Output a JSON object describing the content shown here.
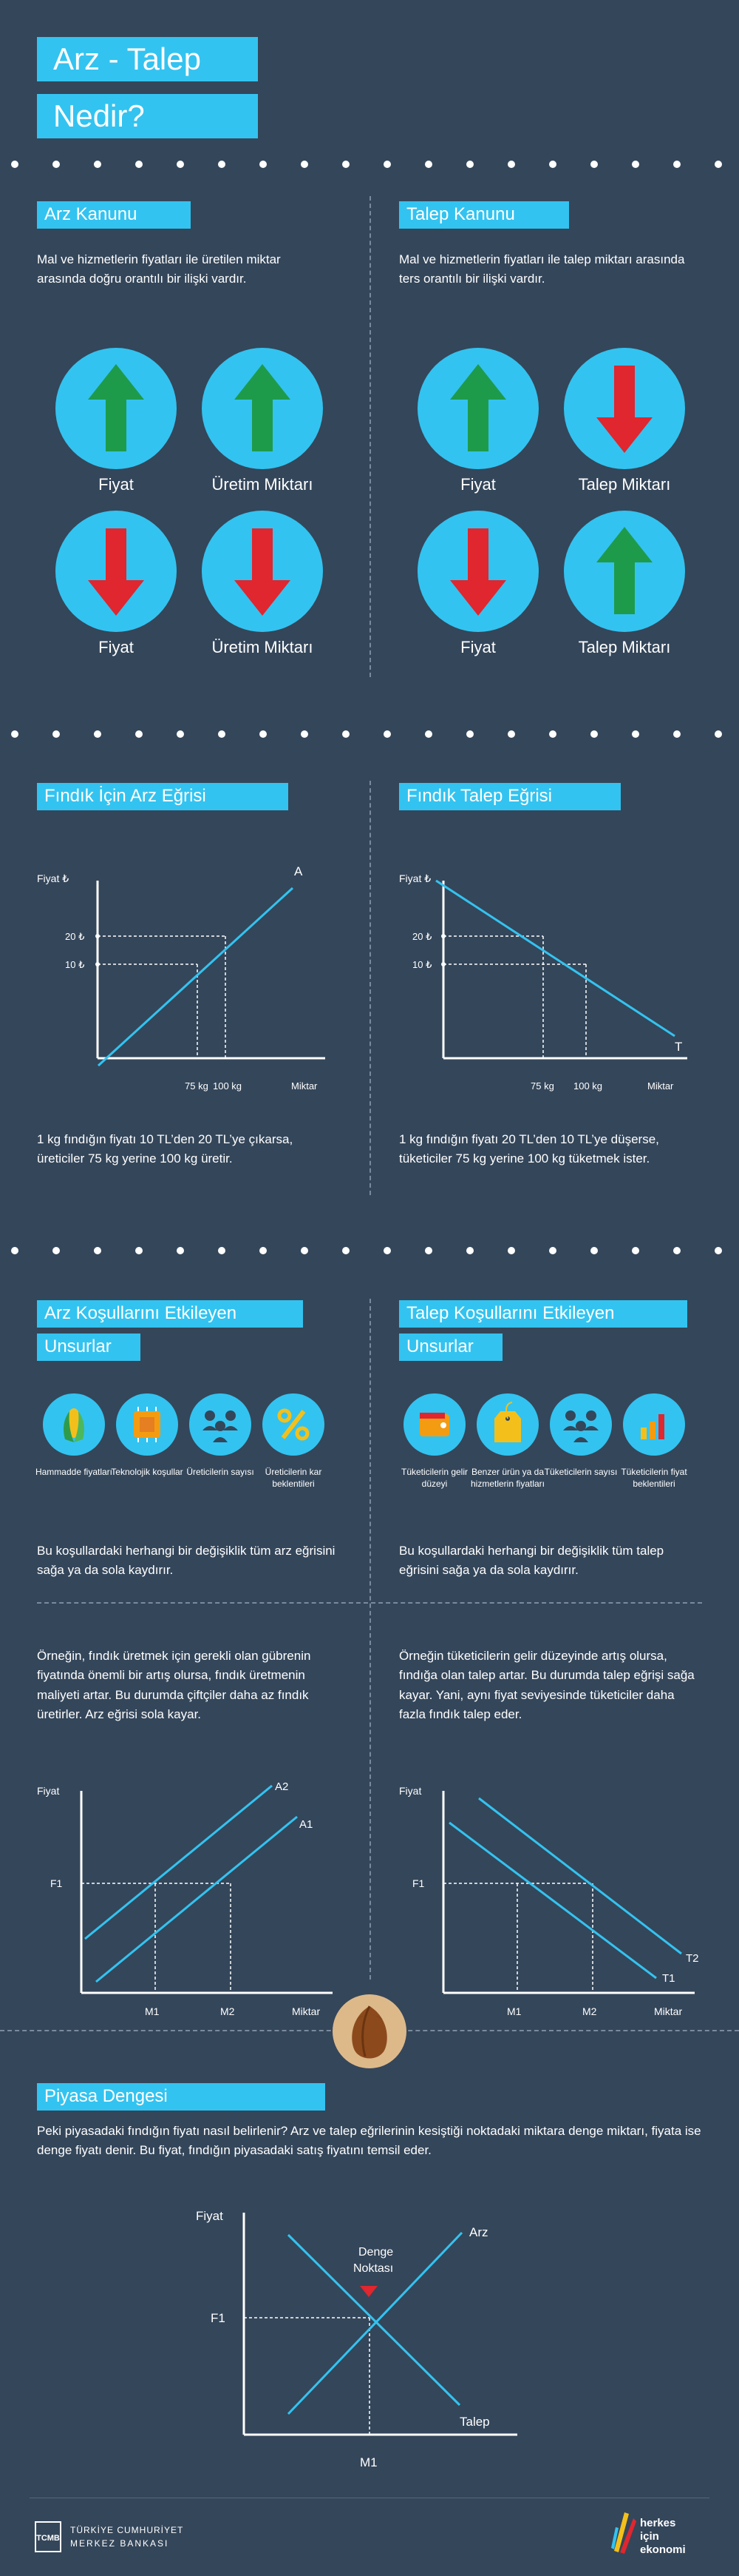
{
  "header": {
    "title_line1": "Arz - Talep",
    "title_line2": "Nedir?"
  },
  "arz_kanunu": {
    "heading": "Arz Kanunu",
    "text": "Mal ve hizmetlerin fiyatları ile üretilen miktar arasında doğru orantılı bir ilişki vardır.",
    "items": [
      {
        "label": "Fiyat",
        "direction": "up",
        "color": "#1e9b4a"
      },
      {
        "label": "Üretim Miktarı",
        "direction": "up",
        "color": "#1e9b4a"
      },
      {
        "label": "Fiyat",
        "direction": "down",
        "color": "#e0262e"
      },
      {
        "label": "Üretim Miktarı",
        "direction": "down",
        "color": "#e0262e"
      }
    ]
  },
  "talep_kanunu": {
    "heading": "Talep Kanunu",
    "text": "Mal ve hizmetlerin fiyatları ile talep miktarı arasında ters orantılı bir ilişki vardır.",
    "items": [
      {
        "label": "Fiyat",
        "direction": "up",
        "color": "#1e9b4a"
      },
      {
        "label": "Talep Miktarı",
        "direction": "down",
        "color": "#e0262e"
      },
      {
        "label": "Fiyat",
        "direction": "down",
        "color": "#e0262e"
      },
      {
        "label": "Talep Miktarı",
        "direction": "up",
        "color": "#1e9b4a"
      }
    ]
  },
  "arz_egrisi": {
    "heading": "Fındık İçin Arz Eğrisi",
    "ylabel": "Fiyat ₺",
    "xlabel": "Miktar",
    "curve_label": "A",
    "y_ticks": [
      "20 ₺",
      "10 ₺"
    ],
    "x_ticks": [
      "75 kg",
      "100 kg"
    ],
    "text": "1 kg fındığın fiyatı 10 TL’den 20 TL’ye çıkarsa, üreticiler 75 kg yerine 100 kg üretir."
  },
  "talep_egrisi": {
    "heading": "Fındık Talep Eğrisi",
    "ylabel": "Fiyat ₺",
    "xlabel": "Miktar",
    "curve_label": "T",
    "y_ticks": [
      "20 ₺",
      "10 ₺"
    ],
    "x_ticks": [
      "75 kg",
      "100 kg"
    ],
    "text": "1 kg fındığın fiyatı 20 TL’den 10 TL’ye düşerse, tüketiciler 75 kg yerine 100 kg tüketmek ister."
  },
  "arz_kosullari": {
    "heading_line1": "Arz Koşullarını Etkileyen",
    "heading_line2": "Unsurlar",
    "icons": [
      {
        "label": "Hammadde fiyatları",
        "icon": "corn-icon"
      },
      {
        "label": "Teknolojik koşullar",
        "icon": "chip-icon"
      },
      {
        "label": "Üreticilerin sayısı",
        "icon": "people-icon"
      },
      {
        "label": "Üreticilerin kar beklentileri",
        "icon": "percent-icon"
      }
    ],
    "text1": "Bu koşullardaki herhangi bir değişiklik tüm arz eğrisini sağa ya da sola kaydırır.",
    "text2": "Örneğin, fındık üretmek için gerekli olan gübrenin fiyatında önemli bir artış olursa, fındık üretmenin maliyeti artar. Bu durumda çiftçiler daha az fındık üretirler. Arz eğrisi sola kayar.",
    "chart": {
      "ylabel": "Fiyat",
      "xlabel": "Miktar",
      "y_tick": "F1",
      "x_ticks": [
        "M1",
        "M2"
      ],
      "curve_labels": [
        "A2",
        "A1"
      ]
    }
  },
  "talep_kosullari": {
    "heading_line1": "Talep Koşullarını Etkileyen",
    "heading_line2": "Unsurlar",
    "icons": [
      {
        "label": "Tüketicilerin gelir düzeyi",
        "icon": "wallet-icon"
      },
      {
        "label": "Benzer ürün ya da hizmetlerin fiyatları",
        "icon": "price-tag-icon"
      },
      {
        "label": "Tüketicilerin sayısı",
        "icon": "people-icon"
      },
      {
        "label": "Tüketicilerin fiyat beklentileri",
        "icon": "bar-chart-icon"
      }
    ],
    "text1": "Bu koşullardaki herhangi bir değişiklik tüm talep eğrisini sağa ya da sola kaydırır.",
    "text2": "Örneğin tüketicilerin gelir düzeyinde artış olursa, fındığa olan talep artar. Bu durumda talep eğrişi sağa kayar. Yani, aynı fiyat seviyesinde tüketiciler daha fazla fındık talep eder.",
    "chart": {
      "ylabel": "Fiyat",
      "xlabel": "Miktar",
      "y_tick": "F1",
      "x_ticks": [
        "M1",
        "M2"
      ],
      "curve_labels": [
        "T2",
        "T1"
      ]
    }
  },
  "piyasa_dengesi": {
    "heading": "Piyasa Dengesi",
    "text": "Peki piyasadaki fındığın fiyatı nasıl belirlenir? Arz ve talep eğrilerinin kesiştiği noktadaki miktara denge miktarı, fiyata ise denge fiyatı denir. Bu fiyat, fındığın piyasadaki satış fiyatını temsil eder.",
    "chart": {
      "ylabel": "Fiyat",
      "y_tick": "F1",
      "x_tick": "M1",
      "arz_label": "Arz",
      "talep_label": "Talep",
      "point_label_1": "Denge",
      "point_label_2": "Noktası"
    }
  },
  "footer": {
    "left_line1": "TÜRKİYE CUMHURİYET",
    "left_line2": "MERKEZ BANKASI",
    "logo_initials": "TCMB",
    "right_line1": "herkes",
    "right_line2": "için",
    "right_line3": "ekonomi"
  },
  "colors": {
    "background": "#34465a",
    "accent": "#33c3f0",
    "up": "#1e9b4a",
    "down": "#e0262e"
  }
}
